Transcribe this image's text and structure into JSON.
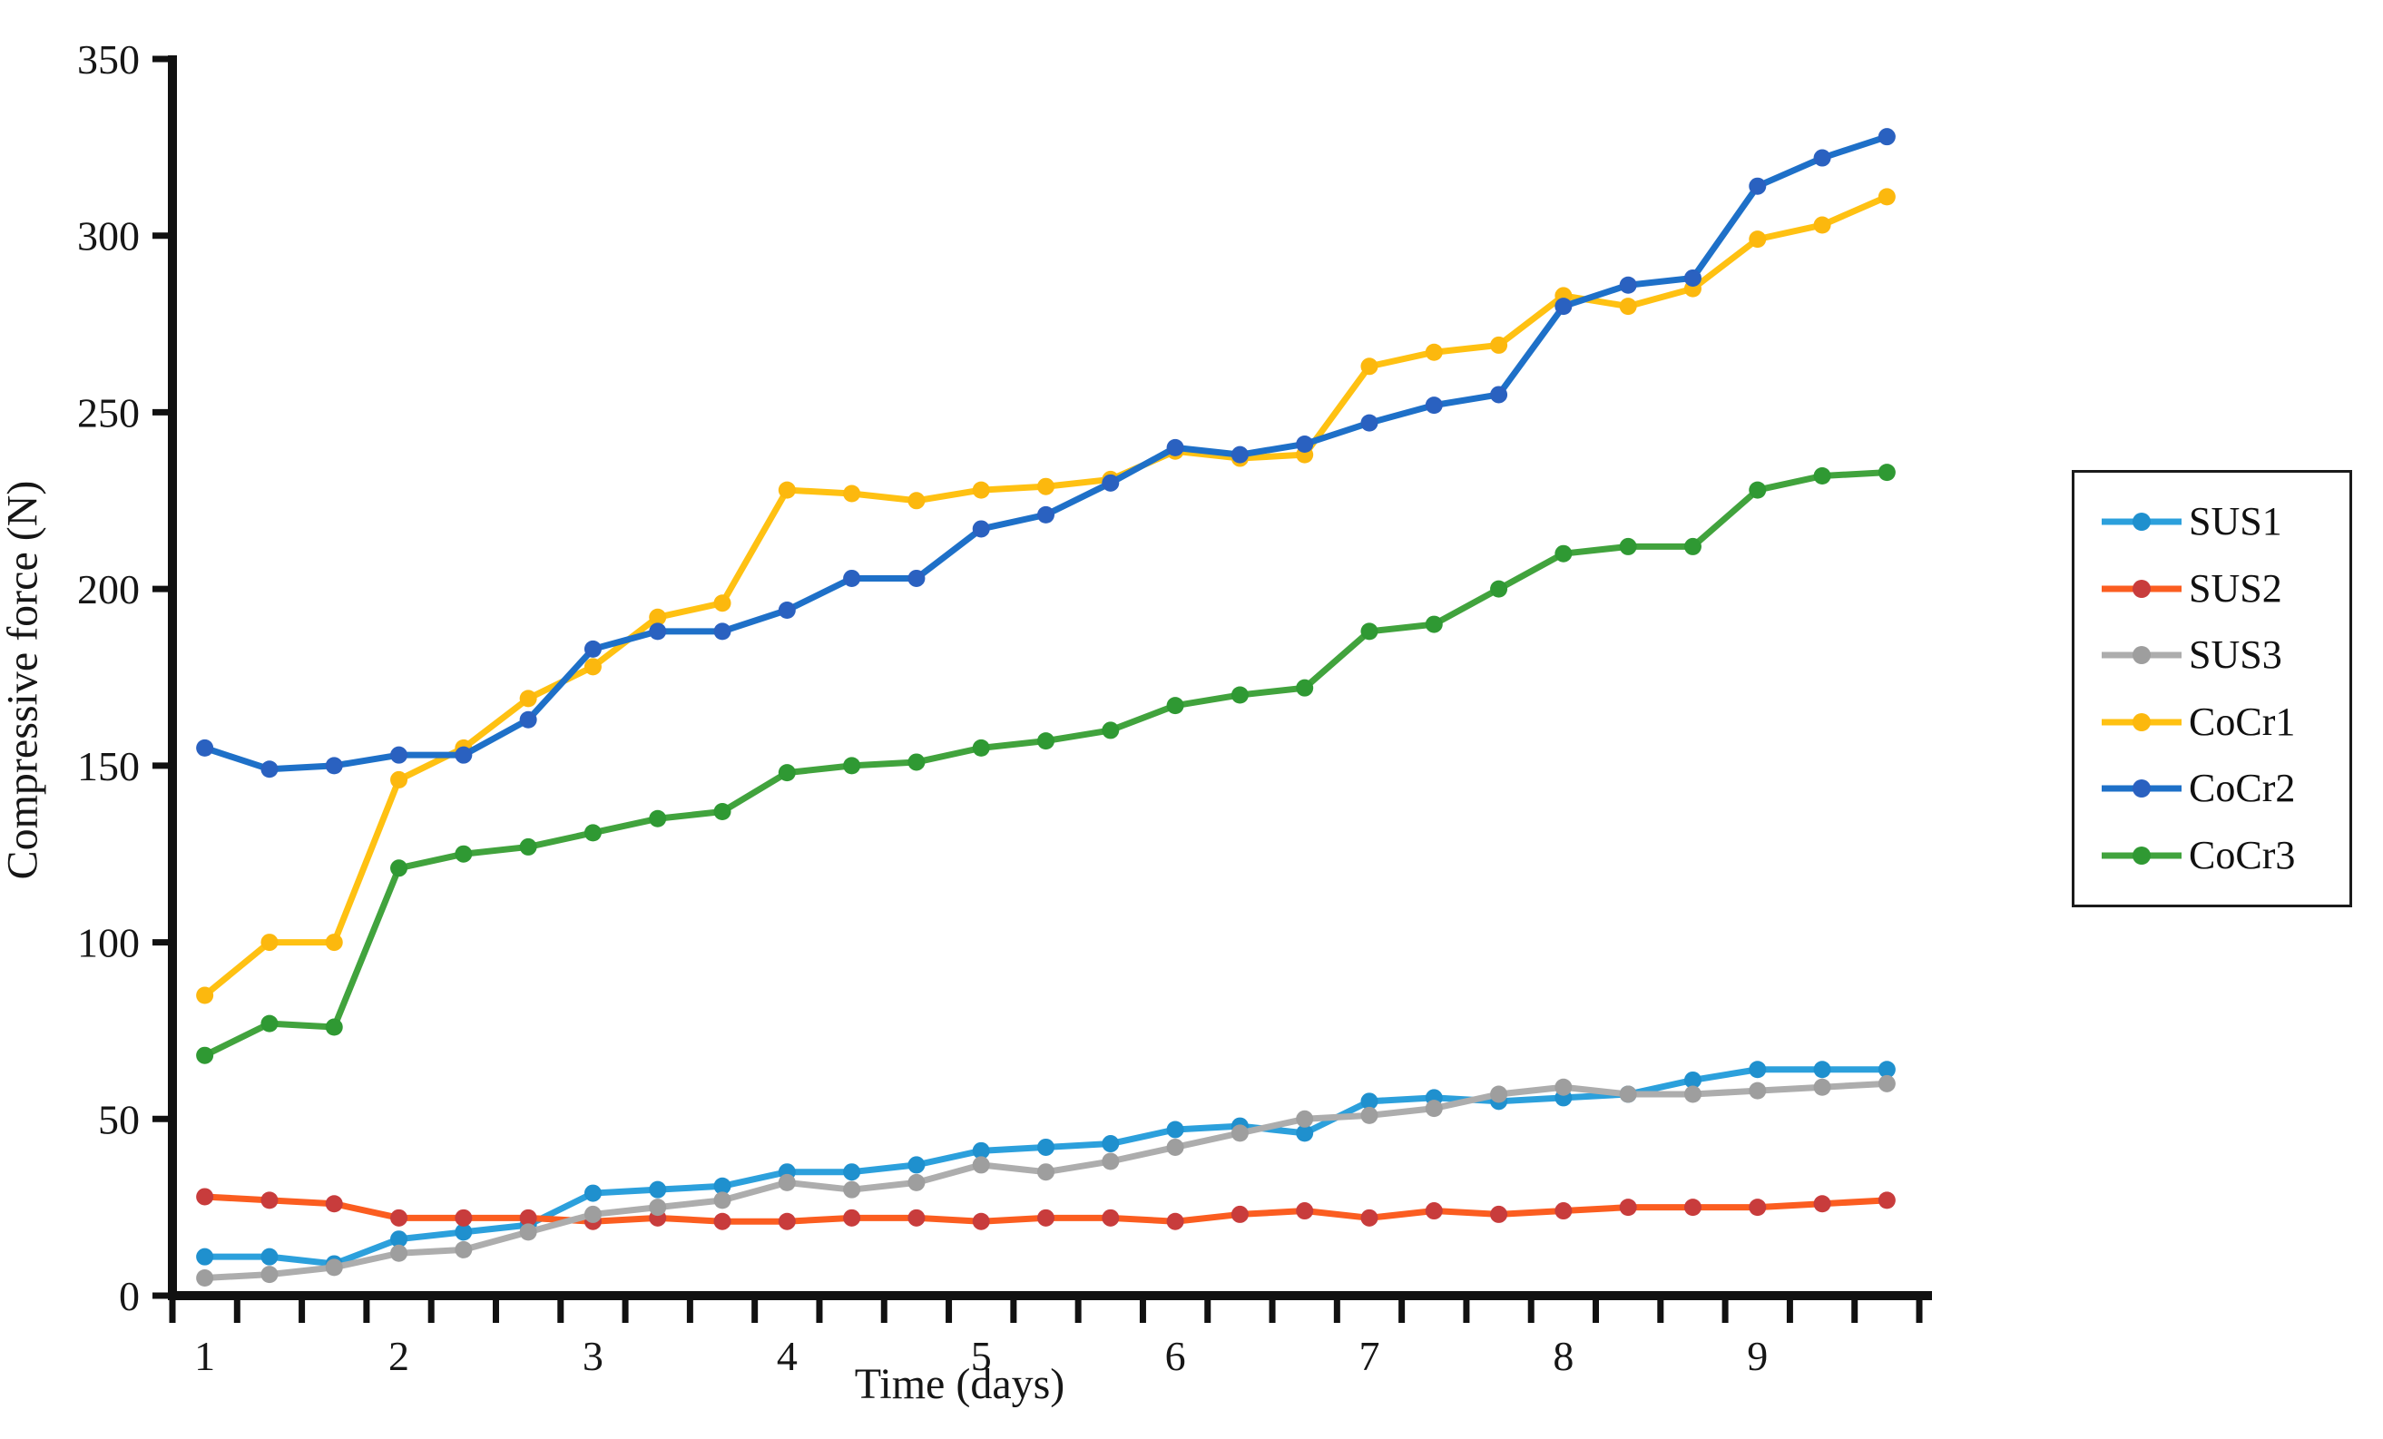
{
  "figure": {
    "background": "#ffffff",
    "axis_color": "#111111",
    "text_color": "#161616"
  },
  "chart_data": {
    "type": "line",
    "title": "",
    "xlabel": "Time (days)",
    "ylabel": "Compressive force (N)",
    "x": [
      1,
      1.33,
      1.67,
      2,
      2.33,
      2.67,
      3,
      3.33,
      3.67,
      4,
      4.33,
      4.67,
      5,
      5.33,
      5.67,
      6,
      6.33,
      6.67,
      7,
      7.33,
      7.67,
      8,
      8.33,
      8.67,
      9,
      9.33,
      9.67
    ],
    "x_tick_labels": [
      "1",
      "2",
      "3",
      "4",
      "5",
      "6",
      "7",
      "8",
      "9"
    ],
    "x_minor_ticks_per_label": 3,
    "ylim": [
      0,
      350
    ],
    "y_ticks": [
      0,
      50,
      100,
      150,
      200,
      250,
      300,
      350
    ],
    "grid": false,
    "legend_position": "right",
    "series": [
      {
        "name": "SUS1",
        "color": "#2CA0DC",
        "marker_color": "#1F90CE",
        "values": [
          11,
          11,
          9,
          16,
          18,
          20,
          29,
          30,
          31,
          35,
          35,
          37,
          41,
          42,
          43,
          47,
          48,
          46,
          55,
          56,
          55,
          56,
          57,
          61,
          64,
          64,
          64
        ]
      },
      {
        "name": "SUS2",
        "color": "#FB5D20",
        "marker_color": "#C83C3C",
        "values": [
          28,
          27,
          26,
          22,
          22,
          22,
          21,
          22,
          21,
          21,
          22,
          22,
          21,
          22,
          22,
          21,
          23,
          24,
          22,
          24,
          23,
          24,
          25,
          25,
          25,
          26,
          27
        ]
      },
      {
        "name": "SUS3",
        "color": "#ADADAD",
        "marker_color": "#9E9E9E",
        "values": [
          5,
          6,
          8,
          12,
          13,
          18,
          23,
          25,
          27,
          32,
          30,
          32,
          37,
          35,
          38,
          42,
          46,
          50,
          51,
          53,
          57,
          59,
          57,
          57,
          58,
          59,
          60
        ]
      },
      {
        "name": "CoCr1",
        "color": "#FFC112",
        "marker_color": "#FCB80E",
        "values": [
          85,
          100,
          100,
          146,
          155,
          169,
          178,
          192,
          196,
          228,
          227,
          225,
          228,
          229,
          231,
          239,
          237,
          238,
          263,
          267,
          269,
          283,
          280,
          285,
          299,
          303,
          311
        ]
      },
      {
        "name": "CoCr2",
        "color": "#1E70C8",
        "marker_color": "#2A61C0",
        "values": [
          155,
          149,
          150,
          153,
          153,
          163,
          183,
          188,
          188,
          194,
          203,
          203,
          217,
          221,
          230,
          240,
          238,
          241,
          247,
          252,
          255,
          280,
          286,
          288,
          314,
          322,
          328
        ]
      },
      {
        "name": "CoCr3",
        "color": "#41A33D",
        "marker_color": "#2F9933",
        "values": [
          68,
          77,
          76,
          121,
          125,
          127,
          131,
          135,
          137,
          148,
          150,
          151,
          155,
          157,
          160,
          167,
          170,
          172,
          188,
          190,
          200,
          210,
          212,
          212,
          228,
          232,
          233
        ]
      }
    ]
  }
}
